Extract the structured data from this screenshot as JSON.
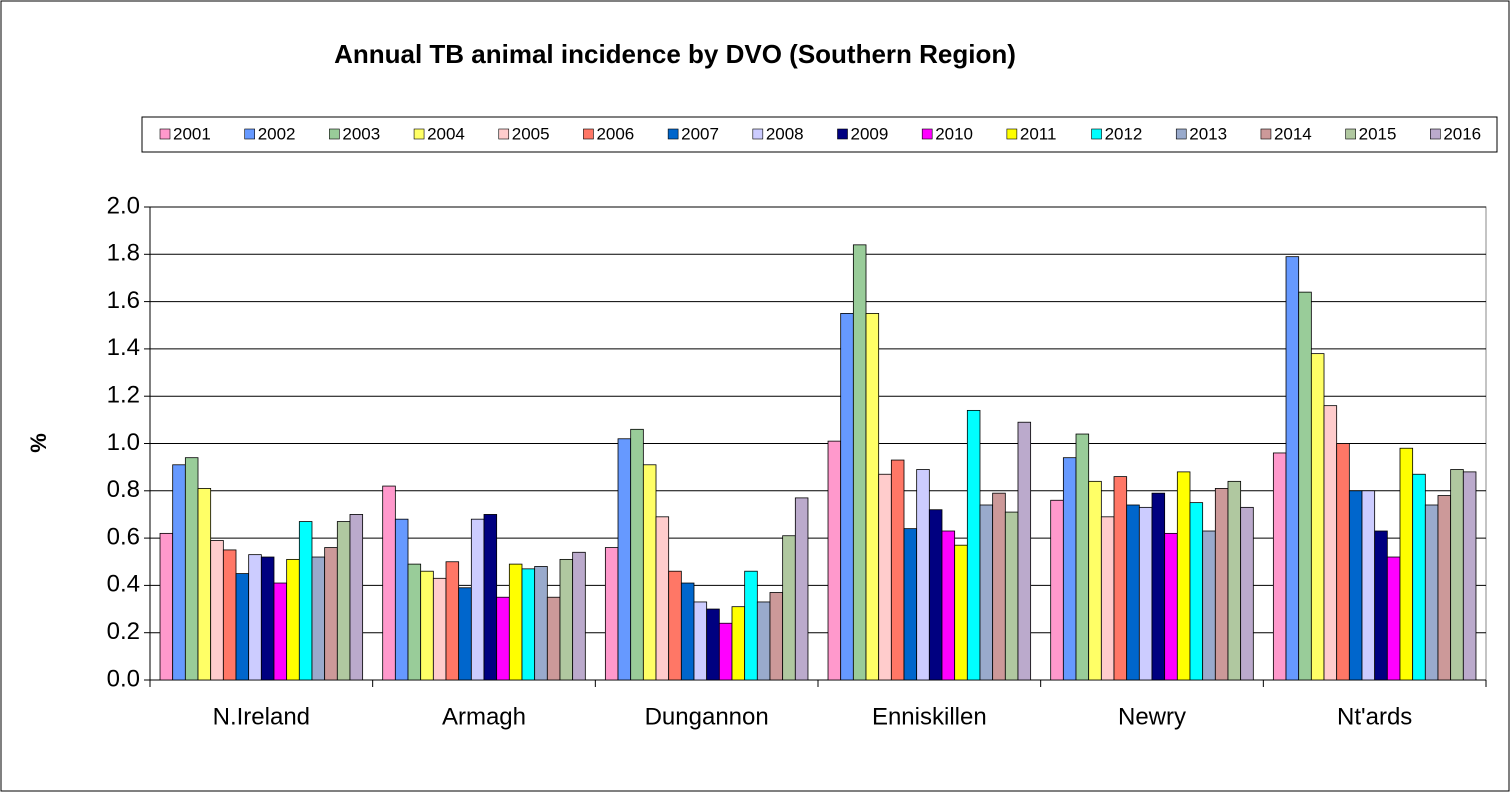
{
  "chart_data": {
    "type": "bar",
    "title": "Annual TB animal incidence by DVO (Southern Region)",
    "y_label": "%",
    "categories": [
      "N.Ireland",
      "Armagh",
      "Dungannon",
      "Enniskillen",
      "Newry",
      "Nt'ards"
    ],
    "ylim": [
      0,
      2.0
    ],
    "yticks": [
      {
        "value": 0,
        "label": "0.0"
      },
      {
        "value": 0.2,
        "label": "0.2"
      },
      {
        "value": 0.4,
        "label": "0.4"
      },
      {
        "value": 0.6,
        "label": "0.6"
      },
      {
        "value": 0.8,
        "label": "0.8"
      },
      {
        "value": 1.0,
        "label": "1.0"
      },
      {
        "value": 1.2,
        "label": "1.2"
      },
      {
        "value": 1.4,
        "label": "1.4"
      },
      {
        "value": 1.6,
        "label": "1.6"
      },
      {
        "value": 1.8,
        "label": "1.8"
      },
      {
        "value": 2.0,
        "label": "2.0"
      }
    ],
    "grid": true,
    "series": [
      {
        "name": "2001",
        "color": "#ff99cc",
        "values": [
          0.62,
          0.82,
          0.56,
          1.01,
          0.76,
          0.96
        ]
      },
      {
        "name": "2002",
        "color": "#6699ff",
        "values": [
          0.91,
          0.68,
          1.02,
          1.55,
          0.94,
          1.79
        ]
      },
      {
        "name": "2003",
        "color": "#99cc99",
        "values": [
          0.94,
          0.49,
          1.06,
          1.84,
          1.04,
          1.64
        ]
      },
      {
        "name": "2004",
        "color": "#ffff66",
        "values": [
          0.81,
          0.46,
          0.91,
          1.55,
          0.84,
          1.38
        ]
      },
      {
        "name": "2005",
        "color": "#ffcccc",
        "values": [
          0.59,
          0.43,
          0.69,
          0.87,
          0.69,
          1.16
        ]
      },
      {
        "name": "2006",
        "color": "#ff7766",
        "values": [
          0.55,
          0.5,
          0.46,
          0.93,
          0.86,
          1.0
        ]
      },
      {
        "name": "2007",
        "color": "#0066cc",
        "values": [
          0.45,
          0.39,
          0.41,
          0.64,
          0.74,
          0.8
        ]
      },
      {
        "name": "2008",
        "color": "#ccccff",
        "values": [
          0.53,
          0.68,
          0.33,
          0.89,
          0.73,
          0.8
        ]
      },
      {
        "name": "2009",
        "color": "#000080",
        "values": [
          0.52,
          0.7,
          0.3,
          0.72,
          0.79,
          0.63
        ]
      },
      {
        "name": "2010",
        "color": "#ff00ff",
        "values": [
          0.41,
          0.35,
          0.24,
          0.63,
          0.62,
          0.52
        ]
      },
      {
        "name": "2011",
        "color": "#ffff00",
        "values": [
          0.51,
          0.49,
          0.31,
          0.57,
          0.88,
          0.98
        ]
      },
      {
        "name": "2012",
        "color": "#00ffff",
        "values": [
          0.67,
          0.47,
          0.46,
          1.14,
          0.75,
          0.87
        ]
      },
      {
        "name": "2013",
        "color": "#99aacc",
        "values": [
          0.52,
          0.48,
          0.33,
          0.74,
          0.63,
          0.74
        ]
      },
      {
        "name": "2014",
        "color": "#cc9999",
        "values": [
          0.56,
          0.35,
          0.37,
          0.79,
          0.81,
          0.78
        ]
      },
      {
        "name": "2015",
        "color": "#b0c8a0",
        "values": [
          0.67,
          0.51,
          0.61,
          0.71,
          0.84,
          0.89
        ]
      },
      {
        "name": "2016",
        "color": "#bbaacc",
        "values": [
          0.7,
          0.54,
          0.77,
          1.09,
          0.73,
          0.88
        ]
      }
    ]
  }
}
